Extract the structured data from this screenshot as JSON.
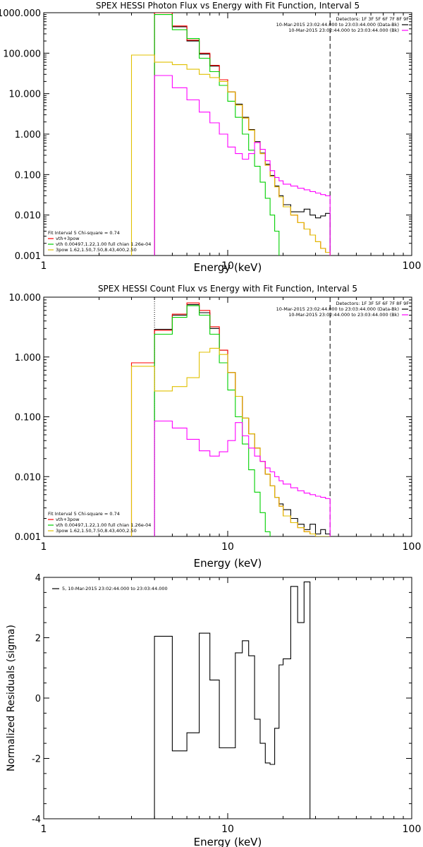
{
  "chart_data": [
    {
      "type": "line",
      "title": "SPEX HESSI Photon Flux vs Energy with Fit Function, Interval 5",
      "xlabel": "Energy (keV)",
      "ylabel": "",
      "xscale": "log",
      "yscale": "log",
      "xlim": [
        1,
        100
      ],
      "ylim": [
        0.001,
        1000
      ],
      "x_ticks": [
        "1",
        "10",
        "100"
      ],
      "y_ticks": [
        "0.001",
        "0.010",
        "0.100",
        "1.000",
        "10.000",
        "100.000",
        "1000.000"
      ],
      "y_tick_values": [
        0.001,
        0.01,
        0.1,
        1,
        10,
        100,
        1000
      ],
      "vlines": [
        {
          "x": 4.0,
          "style": "dotted",
          "color": "#ff00ff"
        },
        {
          "x": 36.0,
          "style": "dashed",
          "color": "#000000"
        }
      ],
      "detectors_text": "Detectors: 1F 3F 5F 6F 7F 8F 9F",
      "legend_right": [
        {
          "text": "10-Mar-2015 23:02:44.000 to 23:03:44.000 (Data-Bk)",
          "color": "#000000"
        },
        {
          "text": "10-Mar-2015 23:02:44.000 to 23:03:44.000 (Bk)",
          "color": "#ff00ff"
        }
      ],
      "legend_left_title": "Fit Interval 5   Chi-square = 0.74",
      "legend_left": [
        {
          "text": "vth+3pow",
          "color": "#ff0000"
        },
        {
          "text": "vth 0.00497,1.22,1.00  full chian 1.26e-04",
          "color": "#00d000"
        },
        {
          "text": "3pow 1.62,1.50,7.50,8.43,400,2.50",
          "color": "#e0c000"
        }
      ],
      "x_edges": [
        3,
        4,
        5,
        6,
        7,
        8,
        9,
        10,
        11,
        12,
        13,
        14,
        15,
        16,
        17,
        18,
        19,
        20,
        22,
        24,
        26,
        28,
        30,
        32,
        34,
        36
      ],
      "series": [
        {
          "role": "data-bk",
          "color": "#000000",
          "values": [
            null,
            1000,
            450,
            200,
            95,
            48,
            22,
            11,
            5.5,
            2.6,
            1.3,
            0.65,
            0.34,
            0.18,
            0.095,
            0.052,
            0.03,
            0.018,
            0.012,
            0.012,
            0.014,
            0.01,
            0.0085,
            0.0095,
            0.011
          ]
        },
        {
          "role": "total-fit",
          "color": "#ff0000",
          "values": [
            null,
            1000,
            470,
            210,
            100,
            50,
            22,
            11,
            5.2,
            2.5,
            1.25,
            0.62,
            0.33,
            0.17,
            0.09,
            0.05,
            0.028,
            0.016,
            0.01,
            0.0065,
            0.0045,
            0.0032,
            0.0022,
            0.0015,
            0.0012
          ]
        },
        {
          "role": "thermal",
          "color": "#00d000",
          "values": [
            null,
            900,
            380,
            230,
            75,
            35,
            16,
            6.5,
            2.6,
            1.0,
            0.4,
            0.16,
            0.065,
            0.026,
            0.01,
            0.004
          ]
        },
        {
          "role": "power-law",
          "color": "#e0c000",
          "values": [
            90,
            60,
            52,
            40,
            30,
            25,
            20,
            11,
            5.2,
            2.5,
            1.25,
            0.62,
            0.33,
            0.17,
            0.09,
            0.05,
            0.028,
            0.016,
            0.01,
            0.0065,
            0.0045,
            0.0032,
            0.0022,
            0.0015,
            0.0012
          ]
        },
        {
          "role": "background",
          "color": "#ff00ff",
          "values": [
            null,
            28,
            14,
            7.0,
            3.5,
            1.9,
            1.0,
            0.48,
            0.33,
            0.24,
            0.33,
            0.62,
            0.42,
            0.22,
            0.125,
            0.085,
            0.07,
            0.058,
            0.052,
            0.046,
            0.042,
            0.038,
            0.035,
            0.032,
            0.03
          ]
        }
      ]
    },
    {
      "type": "line",
      "title": "SPEX HESSI Count Flux vs Energy with Fit Function, Interval 5",
      "xlabel": "Energy (keV)",
      "ylabel": "",
      "xscale": "log",
      "yscale": "log",
      "xlim": [
        1,
        100
      ],
      "ylim": [
        0.001,
        10
      ],
      "x_ticks": [
        "1",
        "10",
        "100"
      ],
      "y_ticks": [
        "0.001",
        "0.010",
        "0.100",
        "1.000",
        "10.000"
      ],
      "y_tick_values": [
        0.001,
        0.01,
        0.1,
        1,
        10
      ],
      "vlines": [
        {
          "x": 4.0,
          "style": "dotted",
          "color": "#000000"
        },
        {
          "x": 36.0,
          "style": "dashed",
          "color": "#000000"
        }
      ],
      "detectors_text": "Detectors: 1F 3F 5F 6F 7F 8F 9F",
      "legend_right": [
        {
          "text": "10-Mar-2015 23:02:44.000 to 23:03:44.000 (Data-Bk)",
          "color": "#000000"
        },
        {
          "text": "10-Mar-2015 23:02:44.000 to 23:03:44.000 (Bk)",
          "color": "#ff00ff"
        }
      ],
      "legend_left_title": "Fit Interval 5   Chi-square = 0.74",
      "legend_left": [
        {
          "text": "vth+3pow",
          "color": "#ff0000"
        },
        {
          "text": "vth 0.00497,1.22,1.00  full chian 1.26e-04",
          "color": "#00d000"
        },
        {
          "text": "3pow 1.62,1.50,7.50,8.43,400,2.50",
          "color": "#e0c000"
        }
      ],
      "x_edges": [
        3,
        4,
        5,
        6,
        7,
        8,
        9,
        10,
        11,
        12,
        13,
        14,
        15,
        16,
        17,
        18,
        19,
        20,
        22,
        24,
        26,
        28,
        30,
        32,
        34,
        36
      ],
      "series": [
        {
          "role": "data-bk",
          "color": "#000000",
          "values": [
            null,
            2.9,
            5.0,
            7.5,
            5.5,
            3.0,
            1.3,
            0.55,
            0.22,
            0.095,
            0.052,
            0.03,
            0.018,
            0.011,
            0.007,
            0.0045,
            0.0035,
            0.0028,
            0.002,
            0.0016,
            0.0013,
            0.0016,
            0.0011,
            0.0013,
            0.0011
          ]
        },
        {
          "role": "total-fit",
          "color": "#ff0000",
          "values": [
            0.8,
            2.8,
            5.2,
            8.0,
            6.0,
            3.2,
            1.3,
            0.55,
            0.22,
            0.095,
            0.052,
            0.03,
            0.018,
            0.011,
            0.007,
            0.0045,
            0.0032,
            0.0022,
            0.0017,
            0.0014,
            0.0012,
            0.0011,
            0.001,
            0.001,
            0.001
          ]
        },
        {
          "role": "thermal",
          "color": "#00d000",
          "values": [
            null,
            2.4,
            4.6,
            7.2,
            5.0,
            2.4,
            0.8,
            0.28,
            0.1,
            0.035,
            0.013,
            0.0055,
            0.0025,
            0.0012
          ]
        },
        {
          "role": "power-law",
          "color": "#e0c000",
          "values": [
            0.7,
            0.27,
            0.32,
            0.45,
            1.2,
            1.4,
            1.1,
            0.55,
            0.22,
            0.095,
            0.052,
            0.03,
            0.018,
            0.011,
            0.007,
            0.0045,
            0.0032,
            0.0022,
            0.0017,
            0.0014,
            0.0012,
            0.0011,
            0.001,
            0.001,
            0.001
          ]
        },
        {
          "role": "background",
          "color": "#ff00ff",
          "values": [
            null,
            0.085,
            0.065,
            0.042,
            0.027,
            0.022,
            0.026,
            0.04,
            0.08,
            0.048,
            0.03,
            0.022,
            0.018,
            0.014,
            0.012,
            0.01,
            0.0085,
            0.0075,
            0.0065,
            0.0058,
            0.0053,
            0.005,
            0.0047,
            0.0045,
            0.0043
          ]
        }
      ]
    },
    {
      "type": "line",
      "title": "",
      "xlabel": "Energy (keV)",
      "ylabel": "Normalized Residuals (sigma)",
      "xscale": "log",
      "yscale": "linear",
      "xlim": [
        1,
        100
      ],
      "ylim": [
        -4,
        4
      ],
      "x_ticks": [
        "1",
        "10",
        "100"
      ],
      "y_ticks": [
        "-4",
        "-2",
        "0",
        "2",
        "4"
      ],
      "y_tick_values": [
        -4,
        -2,
        0,
        2,
        4
      ],
      "legend_left_title": "",
      "legend_left": [
        {
          "text": "5, 10-Mar-2015 23:02:44.000 to 23:03:44.000",
          "color": "#000000"
        }
      ],
      "x_edges": [
        4,
        5,
        6,
        7,
        8,
        9,
        10,
        11,
        12,
        13,
        14,
        15,
        16,
        17,
        18,
        19,
        20,
        22,
        24,
        26,
        28,
        30,
        32,
        34,
        36
      ],
      "series": [
        {
          "role": "residuals",
          "color": "#000000",
          "values": [
            2.05,
            -1.75,
            -1.15,
            2.15,
            0.6,
            -1.65,
            -1.65,
            1.5,
            1.9,
            1.4,
            -0.7,
            -1.5,
            -2.15,
            -2.2,
            -1.0,
            1.1,
            1.3,
            3.7,
            2.5,
            3.85
          ]
        }
      ]
    }
  ]
}
